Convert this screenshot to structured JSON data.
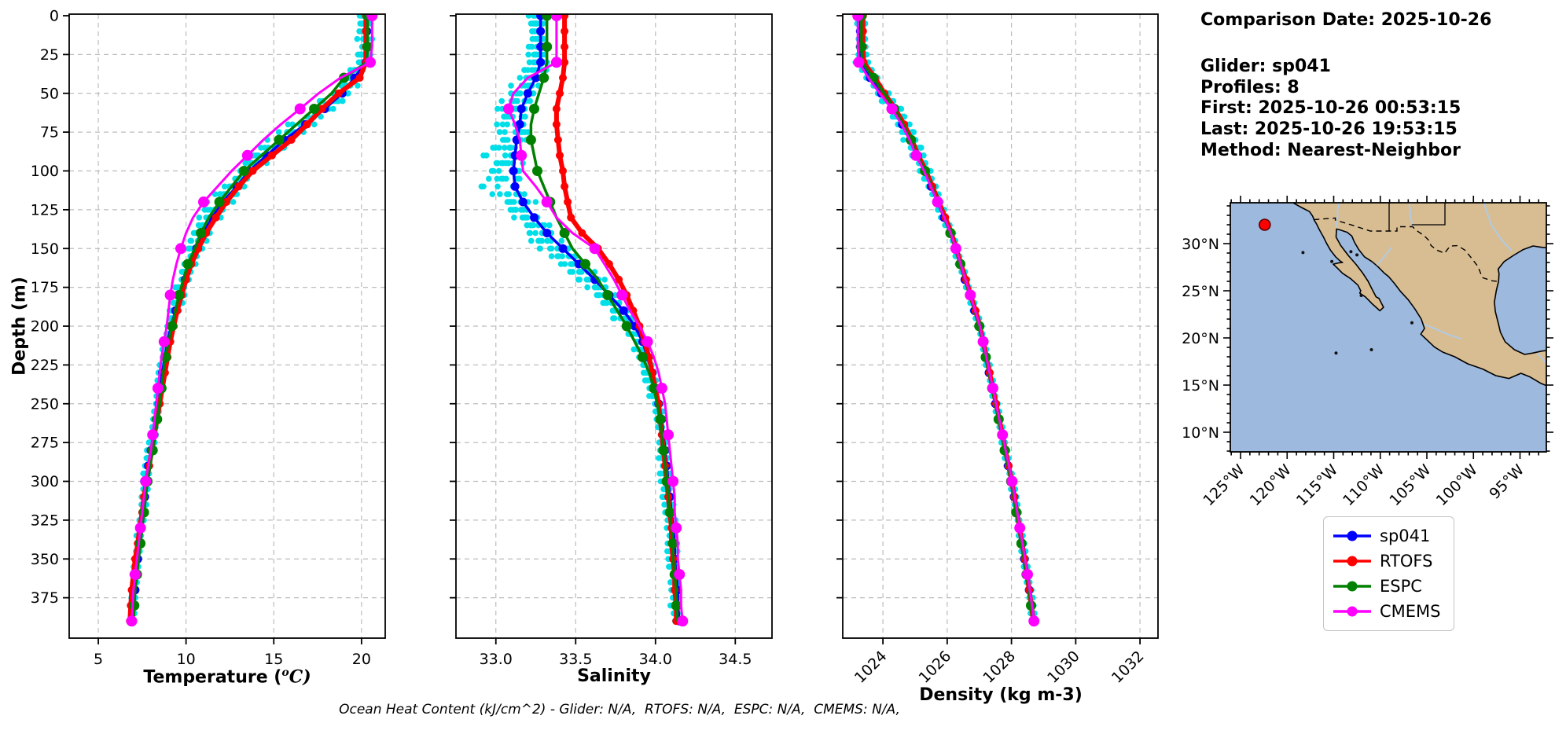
{
  "info_block": {
    "title": "Comparison Date: 2025-10-26",
    "lines": [
      "Glider: sp041",
      "Profiles: 8",
      "First: 2025-10-26 00:53:15",
      "Last: 2025-10-26 19:53:15",
      "Method: Nearest-Neighbor"
    ]
  },
  "bottom_note": "Ocean Heat Content (kJ/cm^2) - Glider: N/A,  RTOFS: N/A,  ESPC: N/A,  CMEMS: N/A,",
  "legend": {
    "entries": [
      {
        "label": "sp041",
        "color": "#0000ff"
      },
      {
        "label": "RTOFS",
        "color": "#ff0000"
      },
      {
        "label": "ESPC",
        "color": "#008000"
      },
      {
        "label": "CMEMS",
        "color": "#ff00ff"
      }
    ]
  },
  "chart_data": {
    "type": "line",
    "description": "Glider-vs-model ocean profile comparison: temperature, salinity and density versus depth, plus location map",
    "grid": true,
    "depth_axis": {
      "label": "Depth (m)",
      "ticks": [
        0,
        25,
        50,
        75,
        100,
        125,
        150,
        175,
        200,
        225,
        250,
        275,
        300,
        325,
        350,
        375
      ],
      "range": [
        0,
        400
      ]
    },
    "depth_m": [
      0,
      10,
      20,
      30,
      40,
      50,
      60,
      70,
      80,
      90,
      100,
      110,
      120,
      130,
      140,
      150,
      160,
      170,
      180,
      190,
      200,
      210,
      220,
      230,
      240,
      250,
      260,
      270,
      280,
      290,
      300,
      310,
      320,
      330,
      340,
      350,
      360,
      370,
      380,
      390
    ],
    "series_colors": {
      "sp041": "#0000ff",
      "RTOFS": "#ff0000",
      "ESPC": "#008000",
      "CMEMS": "#ff00ff"
    },
    "glider_scatter": {
      "label": "raw glider profile scatter",
      "color": "#00dfe8",
      "profiles": 8,
      "based_on": "sp041"
    },
    "panels": [
      {
        "id": "temperature",
        "xlabel_prefix": "Temperature (",
        "xlabel_sup": "o",
        "xlabel_suffix": "C)",
        "ticks": [
          5,
          10,
          15,
          20
        ],
        "tick_labels": [
          "5",
          "10",
          "15",
          "20"
        ],
        "xlim": [
          3.34,
          21.35
        ],
        "series": {
          "sp041": [
            20.3,
            20.3,
            20.3,
            20.25,
            19.6,
            18.9,
            17.9,
            16.8,
            15.6,
            14.6,
            13.6,
            12.9,
            12.1,
            11.5,
            11.0,
            10.6,
            10.25,
            9.95,
            9.7,
            9.4,
            9.15,
            8.95,
            8.8,
            8.65,
            8.55,
            8.45,
            8.3,
            8.15,
            8.0,
            7.85,
            7.75,
            7.65,
            7.55,
            7.45,
            7.35,
            7.25,
            7.15,
            7.1,
            7.0,
            6.95
          ],
          "RTOFS": [
            20.25,
            20.25,
            20.25,
            20.25,
            19.9,
            18.7,
            17.75,
            16.9,
            16.0,
            14.9,
            13.8,
            13.0,
            12.3,
            11.7,
            11.15,
            10.7,
            10.3,
            10.0,
            9.75,
            9.5,
            9.3,
            9.1,
            8.95,
            8.8,
            8.65,
            8.5,
            8.35,
            8.2,
            8.05,
            7.9,
            7.75,
            7.6,
            7.5,
            7.35,
            7.25,
            7.1,
            7.0,
            6.9,
            6.85,
            6.8
          ],
          "ESPC": [
            20.35,
            20.35,
            20.35,
            20.3,
            19.0,
            18.3,
            17.3,
            16.3,
            15.3,
            14.3,
            13.3,
            12.6,
            11.9,
            11.3,
            10.85,
            10.5,
            10.1,
            9.85,
            9.6,
            9.4,
            9.2,
            9.0,
            8.85,
            8.7,
            8.6,
            8.5,
            8.35,
            8.2,
            8.1,
            7.95,
            7.8,
            7.7,
            7.6,
            7.5,
            7.4,
            7.3,
            7.2,
            7.1,
            7.05,
            7.0
          ],
          "CMEMS": [
            20.6,
            20.6,
            20.6,
            20.5,
            18.8,
            17.55,
            16.5,
            15.4,
            14.4,
            13.5,
            12.6,
            11.8,
            11.0,
            10.4,
            10.0,
            9.7,
            9.45,
            9.25,
            9.1,
            9.0,
            8.9,
            8.75,
            8.6,
            8.5,
            8.4,
            8.3,
            8.2,
            8.1,
            8.0,
            7.85,
            7.7,
            7.6,
            7.5,
            7.4,
            7.3,
            7.2,
            7.1,
            7.0,
            6.95,
            6.9
          ]
        }
      },
      {
        "id": "salinity",
        "xlabel": "Salinity",
        "ticks": [
          33.0,
          33.5,
          34.0,
          34.5
        ],
        "tick_labels": [
          "33.0",
          "33.5",
          "34.0",
          "34.5"
        ],
        "xlim": [
          32.75,
          34.73
        ],
        "series": {
          "sp041": [
            33.28,
            33.28,
            33.28,
            33.28,
            33.25,
            33.2,
            33.16,
            33.15,
            33.13,
            33.12,
            33.11,
            33.12,
            33.17,
            33.24,
            33.32,
            33.42,
            33.52,
            33.62,
            33.71,
            33.8,
            33.87,
            33.92,
            33.95,
            33.98,
            34.0,
            34.02,
            34.04,
            34.05,
            34.06,
            34.07,
            34.08,
            34.09,
            34.1,
            34.11,
            34.12,
            34.12,
            34.13,
            34.14,
            34.14,
            34.15
          ],
          "RTOFS": [
            33.43,
            33.43,
            33.43,
            33.43,
            33.42,
            33.4,
            33.38,
            33.38,
            33.39,
            33.4,
            33.42,
            33.43,
            33.45,
            33.47,
            33.54,
            33.64,
            33.71,
            33.77,
            33.82,
            33.86,
            33.9,
            33.93,
            33.96,
            33.98,
            34.0,
            34.02,
            34.03,
            34.04,
            34.05,
            34.06,
            34.07,
            34.08,
            34.09,
            34.1,
            34.1,
            34.11,
            34.12,
            34.12,
            34.13,
            34.13
          ],
          "ESPC": [
            33.32,
            33.32,
            33.32,
            33.32,
            33.3,
            33.27,
            33.24,
            33.22,
            33.22,
            33.24,
            33.26,
            33.3,
            33.34,
            33.38,
            33.43,
            33.48,
            33.56,
            33.64,
            33.7,
            33.76,
            33.82,
            33.87,
            33.92,
            33.96,
            33.99,
            34.01,
            34.03,
            34.04,
            34.05,
            34.06,
            34.07,
            34.08,
            34.09,
            34.1,
            34.11,
            34.11,
            34.12,
            34.13,
            34.13,
            34.14
          ],
          "CMEMS": [
            33.38,
            33.38,
            33.38,
            33.38,
            33.2,
            33.11,
            33.08,
            33.12,
            33.15,
            33.16,
            33.17,
            33.25,
            33.32,
            33.38,
            33.48,
            33.62,
            33.68,
            33.74,
            33.79,
            33.84,
            33.9,
            33.95,
            33.99,
            34.02,
            34.04,
            34.06,
            34.07,
            34.08,
            34.09,
            34.1,
            34.11,
            34.12,
            34.12,
            34.13,
            34.14,
            34.14,
            34.15,
            34.16,
            34.16,
            34.17
          ]
        }
      },
      {
        "id": "density",
        "xlabel": "Density (kg m-3)",
        "ticks": [
          1024,
          1026,
          1028,
          1030,
          1032
        ],
        "tick_labels": [
          "1024",
          "1026",
          "1028",
          "1030",
          "1032"
        ],
        "xlim": [
          1022.75,
          1032.56
        ],
        "series": {
          "sp041": [
            1023.3,
            1023.3,
            1023.3,
            1023.32,
            1023.6,
            1023.95,
            1024.3,
            1024.6,
            1024.85,
            1025.05,
            1025.3,
            1025.5,
            1025.7,
            1025.9,
            1026.1,
            1026.25,
            1026.4,
            1026.55,
            1026.7,
            1026.85,
            1027.0,
            1027.1,
            1027.2,
            1027.3,
            1027.4,
            1027.5,
            1027.6,
            1027.7,
            1027.8,
            1027.9,
            1028.0,
            1028.08,
            1028.16,
            1028.24,
            1028.32,
            1028.4,
            1028.48,
            1028.55,
            1028.62,
            1028.68
          ],
          "RTOFS": [
            1023.38,
            1023.38,
            1023.38,
            1023.4,
            1023.75,
            1024.05,
            1024.38,
            1024.66,
            1024.9,
            1025.1,
            1025.34,
            1025.54,
            1025.74,
            1025.94,
            1026.13,
            1026.28,
            1026.43,
            1026.58,
            1026.73,
            1026.88,
            1027.02,
            1027.12,
            1027.22,
            1027.32,
            1027.42,
            1027.52,
            1027.62,
            1027.72,
            1027.81,
            1027.91,
            1028.01,
            1028.09,
            1028.17,
            1028.25,
            1028.33,
            1028.41,
            1028.48,
            1028.55,
            1028.62,
            1028.68
          ],
          "ESPC": [
            1023.33,
            1023.33,
            1023.33,
            1023.36,
            1023.7,
            1024.05,
            1024.35,
            1024.63,
            1024.87,
            1025.07,
            1025.31,
            1025.51,
            1025.71,
            1025.91,
            1026.1,
            1026.26,
            1026.41,
            1026.56,
            1026.71,
            1026.86,
            1027.0,
            1027.1,
            1027.2,
            1027.3,
            1027.4,
            1027.5,
            1027.6,
            1027.7,
            1027.79,
            1027.89,
            1027.99,
            1028.07,
            1028.15,
            1028.23,
            1028.31,
            1028.39,
            1028.47,
            1028.54,
            1028.61,
            1028.67
          ],
          "CMEMS": [
            1023.22,
            1023.22,
            1023.22,
            1023.25,
            1023.55,
            1023.9,
            1024.28,
            1024.58,
            1024.83,
            1025.03,
            1025.28,
            1025.49,
            1025.7,
            1025.91,
            1026.11,
            1026.27,
            1026.42,
            1026.57,
            1026.72,
            1026.87,
            1027.02,
            1027.12,
            1027.22,
            1027.32,
            1027.42,
            1027.52,
            1027.62,
            1027.72,
            1027.82,
            1027.92,
            1028.02,
            1028.1,
            1028.18,
            1028.26,
            1028.34,
            1028.42,
            1028.5,
            1028.57,
            1028.64,
            1028.7
          ]
        }
      }
    ],
    "map": {
      "lat_tick_labels": [
        "10°N",
        "15°N",
        "20°N",
        "25°N",
        "30°N"
      ],
      "lat_tick_values": [
        10,
        15,
        20,
        25,
        30
      ],
      "lon_tick_labels": [
        "125°W",
        "120°W",
        "115°W",
        "110°W",
        "105°W",
        "100°W",
        "95°W"
      ],
      "lon_tick_values": [
        -125,
        -120,
        -115,
        -110,
        -105,
        -100,
        -95
      ],
      "extent": {
        "lon": [
          -126.1,
          -92.0
        ],
        "lat": [
          7.9,
          34.3
        ]
      },
      "glider_position": {
        "lon": -122.4,
        "lat": 32.0
      },
      "ocean_color": "#9db9dd",
      "land_color": "#d9bd92",
      "river_color": "#aecbea",
      "marker_color": "#ff0000"
    }
  }
}
